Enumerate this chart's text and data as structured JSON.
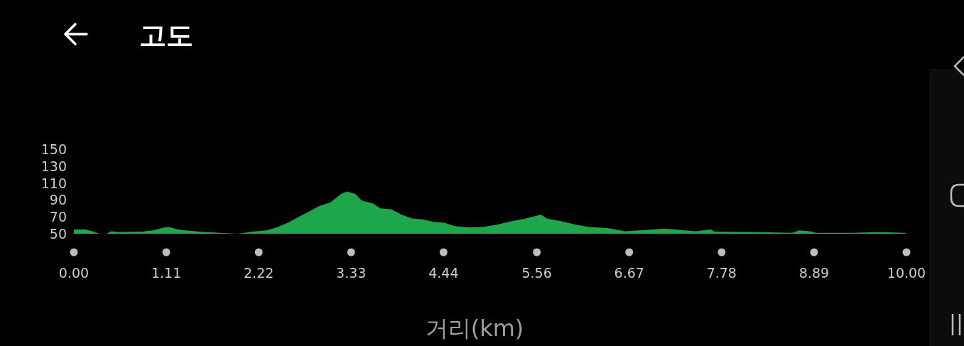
{
  "chart_data": {
    "type": "area",
    "title": "고도",
    "xlabel": "거리(km)",
    "color": "#1fa64a",
    "xlim": [
      0,
      10
    ],
    "ylim": [
      50,
      150
    ],
    "xticks": [
      {
        "value": 0,
        "label": "0.00"
      },
      1.11,
      2.22,
      3.33,
      4.44,
      5.56,
      6.67,
      7.78,
      8.89,
      {
        "value": 10,
        "label": "10.00"
      }
    ],
    "yticks": [
      50,
      70,
      90,
      110,
      130,
      150
    ],
    "x": [
      0,
      0.14,
      0.22,
      0.31,
      0.39,
      0.45,
      0.52,
      0.82,
      0.95,
      1.09,
      1.16,
      1.25,
      1.5,
      1.76,
      1.97,
      2.14,
      2.31,
      2.44,
      2.57,
      2.7,
      2.82,
      2.95,
      3.08,
      3.21,
      3.28,
      3.38,
      3.46,
      3.59,
      3.68,
      3.81,
      3.93,
      4.06,
      4.19,
      4.32,
      4.45,
      4.57,
      4.74,
      4.91,
      5.09,
      5.26,
      5.43,
      5.61,
      5.68,
      5.85,
      6.02,
      6.19,
      6.37,
      6.45,
      6.62,
      6.96,
      7.09,
      7.22,
      7.47,
      7.65,
      7.69,
      8.16,
      8.63,
      8.71,
      8.84,
      8.92,
      9.35,
      9.69,
      9.99
    ],
    "values": [
      55,
      55,
      53,
      50,
      50,
      53,
      52,
      52.5,
      54,
      57.5,
      57.5,
      55,
      52.5,
      51,
      50,
      52.5,
      54,
      57.5,
      63,
      70,
      76,
      83,
      87,
      97,
      100,
      97,
      89,
      86,
      80,
      79,
      73,
      68,
      67,
      64,
      63,
      59,
      57.5,
      58,
      61,
      65,
      68,
      72.7,
      68,
      65,
      61,
      58,
      57,
      56,
      53,
      55,
      56,
      55,
      53,
      55,
      52.5,
      52,
      51,
      54,
      53,
      51,
      51,
      52,
      51
    ]
  }
}
